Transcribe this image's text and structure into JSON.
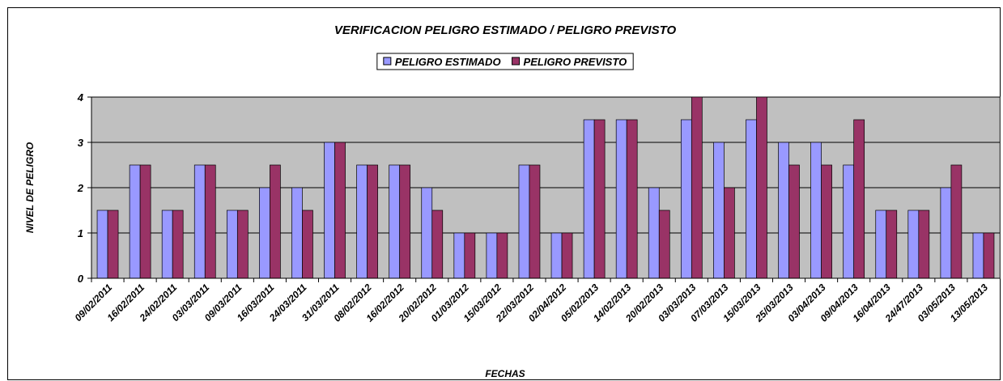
{
  "chart_data": {
    "type": "bar",
    "title": "VERIFICACION PELIGRO ESTIMADO / PELIGRO PREVISTO",
    "x_label": "FECHAS",
    "y_label": "NIVEL DE PELIGRO",
    "categories": [
      "09/02/2011",
      "16/02/2011",
      "24/02/2011",
      "03/03/2011",
      "09/03/2011",
      "16/03/2011",
      "24/03/2011",
      "31/03/2011",
      "08/02/2012",
      "16/02/2012",
      "20/02/2012",
      "01/03/2012",
      "15/03/2012",
      "22/03/2012",
      "02/04/2012",
      "05/02/2013",
      "14/02/2013",
      "20/02/2013",
      "03/03/2013",
      "07/03/2013",
      "15/03/2013",
      "25/03/2013",
      "03/04/2013",
      "09/04/2013",
      "16/04/2013",
      "24/47/2013",
      "03/05/2013",
      "13/05/2013"
    ],
    "series": [
      {
        "name": "PELIGRO ESTIMADO",
        "color": "#9999ff",
        "values": [
          1.5,
          2.5,
          1.5,
          2.5,
          1.5,
          2,
          2,
          3,
          2.5,
          2.5,
          2,
          1,
          1,
          2.5,
          1,
          3.5,
          3.5,
          2,
          3.5,
          3,
          3.5,
          3,
          3,
          2.5,
          1.5,
          1.5,
          2,
          1
        ]
      },
      {
        "name": "PELIGRO PREVISTO",
        "color": "#993366",
        "values": [
          1.5,
          2.5,
          1.5,
          2.5,
          1.5,
          2.5,
          1.5,
          3,
          2.5,
          2.5,
          1.5,
          1,
          1,
          2.5,
          1,
          3.5,
          3.5,
          1.5,
          4,
          2,
          4,
          2.5,
          2.5,
          3.5,
          1.5,
          1.5,
          2.5,
          1
        ]
      }
    ],
    "ylim": [
      0,
      4
    ],
    "yticks": [
      0,
      1,
      2,
      3,
      4
    ],
    "grid": true,
    "legend": "top",
    "plot_background": "#c0c0c0"
  }
}
